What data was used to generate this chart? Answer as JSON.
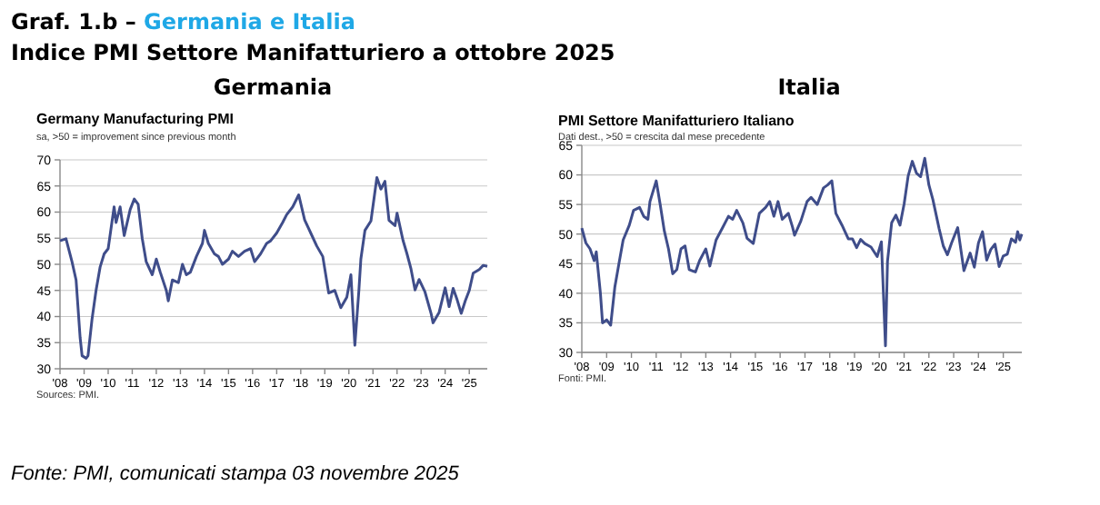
{
  "chart_data": [
    {
      "type": "other",
      "title": "Graf. 1.b – Germania e Italia",
      "subtitle": "Indice PMI Settore Manifatturiero a ottobre 2025",
      "annotations": [
        "Fonte: PMI, comunicati stampa 03 novembre 2025"
      ]
    },
    {
      "type": "line",
      "title": "Germania",
      "subtitle": "Germany Manufacturing PMI",
      "annotations": [
        "sa, >50 = improvement since previous month",
        "Sources: PMI."
      ],
      "grid": "y",
      "xlim": [
        "2008-01",
        "2025-10"
      ],
      "xticks": [
        {
          "value": "2008-01",
          "label": "'08"
        },
        {
          "value": "2009-01",
          "label": "'09"
        },
        {
          "value": "2010-01",
          "label": "'10"
        },
        {
          "value": "2011-01",
          "label": "'11"
        },
        {
          "value": "2012-01",
          "label": "'12"
        },
        {
          "value": "2013-01",
          "label": "'13"
        },
        {
          "value": "2014-01",
          "label": "'14"
        },
        {
          "value": "2015-01",
          "label": "'15"
        },
        {
          "value": "2016-01",
          "label": "'16"
        },
        {
          "value": "2017-01",
          "label": "'17"
        },
        {
          "value": "2018-01",
          "label": "'18"
        },
        {
          "value": "2019-01",
          "label": "'19"
        },
        {
          "value": "2020-01",
          "label": "'20"
        },
        {
          "value": "2021-01",
          "label": "'21"
        },
        {
          "value": "2022-01",
          "label": "'22"
        },
        {
          "value": "2023-01",
          "label": "'23"
        },
        {
          "value": "2024-01",
          "label": "'24"
        },
        {
          "value": "2025-01",
          "label": "'25"
        }
      ],
      "ylim": [
        30,
        70
      ],
      "yticks": [
        30,
        35,
        40,
        45,
        50,
        55,
        60,
        65,
        70
      ],
      "x": [
        "2008-01",
        "2008-04",
        "2008-07",
        "2008-09",
        "2008-11",
        "2008-12",
        "2009-02",
        "2009-03",
        "2009-05",
        "2009-07",
        "2009-09",
        "2009-11",
        "2010-01",
        "2010-04",
        "2010-05",
        "2010-07",
        "2010-09",
        "2010-12",
        "2011-02",
        "2011-04",
        "2011-06",
        "2011-08",
        "2011-11",
        "2012-01",
        "2012-03",
        "2012-06",
        "2012-07",
        "2012-09",
        "2012-12",
        "2013-02",
        "2013-04",
        "2013-06",
        "2013-09",
        "2013-12",
        "2014-01",
        "2014-03",
        "2014-06",
        "2014-08",
        "2014-10",
        "2015-01",
        "2015-03",
        "2015-06",
        "2015-09",
        "2015-12",
        "2016-02",
        "2016-05",
        "2016-08",
        "2016-10",
        "2017-01",
        "2017-04",
        "2017-06",
        "2017-09",
        "2017-12",
        "2018-03",
        "2018-06",
        "2018-09",
        "2018-12",
        "2019-03",
        "2019-06",
        "2019-09",
        "2019-12",
        "2020-02",
        "2020-04",
        "2020-06",
        "2020-07",
        "2020-09",
        "2020-12",
        "2021-03",
        "2021-05",
        "2021-07",
        "2021-09",
        "2021-12",
        "2022-01",
        "2022-04",
        "2022-06",
        "2022-08",
        "2022-10",
        "2022-12",
        "2023-03",
        "2023-06",
        "2023-07",
        "2023-10",
        "2024-01",
        "2024-03",
        "2024-05",
        "2024-07",
        "2024-09",
        "2024-11",
        "2025-01",
        "2025-03",
        "2025-06",
        "2025-08",
        "2025-10"
      ],
      "series": [
        {
          "color": "#3f4d8a",
          "values": [
            54.5,
            54.9,
            50.5,
            47,
            36,
            32.5,
            32,
            32.5,
            39.5,
            45,
            49.5,
            52,
            53,
            61,
            58,
            61,
            55.5,
            60.5,
            62.5,
            61.5,
            55,
            50.5,
            48,
            51,
            48.5,
            45,
            43,
            47,
            46.5,
            50,
            48,
            48.5,
            51.5,
            54,
            56.5,
            54,
            52,
            51.5,
            50,
            51,
            52.5,
            51.5,
            52.5,
            53,
            50.5,
            52,
            54,
            54.5,
            56,
            58,
            59.5,
            61,
            63.3,
            58.5,
            56,
            53.5,
            51.5,
            44.5,
            45,
            41.7,
            43.7,
            48,
            34.5,
            45,
            51,
            56.5,
            58.3,
            66.6,
            64.4,
            65.9,
            58.4,
            57.4,
            59.8,
            54.6,
            52,
            49.1,
            45.1,
            47.1,
            44.7,
            40.6,
            38.8,
            40.8,
            45.5,
            41.9,
            45.4,
            43.2,
            40.6,
            43,
            45,
            48.3,
            49,
            49.8,
            49.6
          ]
        }
      ]
    },
    {
      "type": "line",
      "title": "Italia",
      "subtitle": "PMI Settore Manifatturiero Italiano",
      "annotations": [
        "Dati dest., >50 = crescita dal mese precedente",
        "Fonti: PMI."
      ],
      "grid": "y",
      "xlim": [
        "2008-01",
        "2025-10"
      ],
      "xticks": [
        {
          "value": "2008-01",
          "label": "'08"
        },
        {
          "value": "2009-01",
          "label": "'09"
        },
        {
          "value": "2010-01",
          "label": "'10"
        },
        {
          "value": "2011-01",
          "label": "'11"
        },
        {
          "value": "2012-01",
          "label": "'12"
        },
        {
          "value": "2013-01",
          "label": "'13"
        },
        {
          "value": "2014-01",
          "label": "'14"
        },
        {
          "value": "2015-01",
          "label": "'15"
        },
        {
          "value": "2016-01",
          "label": "'16"
        },
        {
          "value": "2017-01",
          "label": "'17"
        },
        {
          "value": "2018-01",
          "label": "'18"
        },
        {
          "value": "2019-01",
          "label": "'19"
        },
        {
          "value": "2020-01",
          "label": "'20"
        },
        {
          "value": "2021-01",
          "label": "'21"
        },
        {
          "value": "2022-01",
          "label": "'22"
        },
        {
          "value": "2023-01",
          "label": "'23"
        },
        {
          "value": "2024-01",
          "label": "'24"
        },
        {
          "value": "2025-01",
          "label": "'25"
        }
      ],
      "ylim": [
        30,
        65
      ],
      "yticks": [
        30,
        35,
        40,
        45,
        50,
        55,
        60,
        65
      ],
      "x": [
        "2008-01",
        "2008-03",
        "2008-05",
        "2008-07",
        "2008-08",
        "2008-10",
        "2008-11",
        "2009-01",
        "2009-03",
        "2009-05",
        "2009-07",
        "2009-09",
        "2009-12",
        "2010-02",
        "2010-05",
        "2010-07",
        "2010-09",
        "2010-10",
        "2011-01",
        "2011-03",
        "2011-05",
        "2011-07",
        "2011-09",
        "2011-11",
        "2012-01",
        "2012-03",
        "2012-05",
        "2012-08",
        "2012-10",
        "2013-01",
        "2013-03",
        "2013-06",
        "2013-09",
        "2013-12",
        "2014-02",
        "2014-04",
        "2014-07",
        "2014-09",
        "2014-12",
        "2015-03",
        "2015-06",
        "2015-08",
        "2015-10",
        "2015-12",
        "2016-02",
        "2016-05",
        "2016-07",
        "2016-08",
        "2016-11",
        "2017-02",
        "2017-04",
        "2017-07",
        "2017-10",
        "2017-12",
        "2018-02",
        "2018-04",
        "2018-07",
        "2018-10",
        "2018-12",
        "2019-02",
        "2019-04",
        "2019-06",
        "2019-09",
        "2019-12",
        "2020-02",
        "2020-04",
        "2020-05",
        "2020-07",
        "2020-09",
        "2020-11",
        "2021-01",
        "2021-03",
        "2021-05",
        "2021-07",
        "2021-09",
        "2021-11",
        "2022-01",
        "2022-03",
        "2022-06",
        "2022-08",
        "2022-10",
        "2022-12",
        "2023-03",
        "2023-06",
        "2023-09",
        "2023-11",
        "2024-01",
        "2024-03",
        "2024-05",
        "2024-07",
        "2024-09",
        "2024-11",
        "2025-01",
        "2025-03",
        "2025-05",
        "2025-07",
        "2025-08",
        "2025-09",
        "2025-10"
      ],
      "series": [
        {
          "color": "#3f4d8a",
          "values": [
            51,
            48.5,
            47.5,
            45.5,
            47,
            40,
            35,
            35.5,
            34.6,
            41,
            45,
            49,
            51.5,
            54,
            54.5,
            53,
            52.5,
            55.5,
            59,
            55,
            50.5,
            47.5,
            43.3,
            44,
            47.5,
            48,
            44,
            43.6,
            45.5,
            47.5,
            44.6,
            49,
            51,
            53,
            52.5,
            54,
            51.9,
            49.3,
            48.4,
            53.5,
            54.5,
            55.5,
            53,
            55.5,
            52.5,
            53.5,
            51.2,
            49.8,
            52.2,
            55.5,
            56.2,
            55,
            57.8,
            58.3,
            59,
            53.5,
            51.5,
            49.2,
            49.2,
            47.7,
            49.1,
            48.4,
            47.8,
            46.2,
            48.7,
            31.1,
            45.4,
            51.9,
            53.2,
            51.5,
            55.1,
            59.8,
            62.3,
            60.3,
            59.7,
            62.8,
            58.3,
            55.8,
            50.9,
            48,
            46.5,
            48.5,
            51.1,
            43.8,
            46.8,
            44.4,
            48.5,
            50.4,
            45.6,
            47.4,
            48.3,
            44.5,
            46.3,
            46.6,
            49.2,
            48.6,
            50.4,
            49,
            50
          ]
        }
      ]
    }
  ]
}
